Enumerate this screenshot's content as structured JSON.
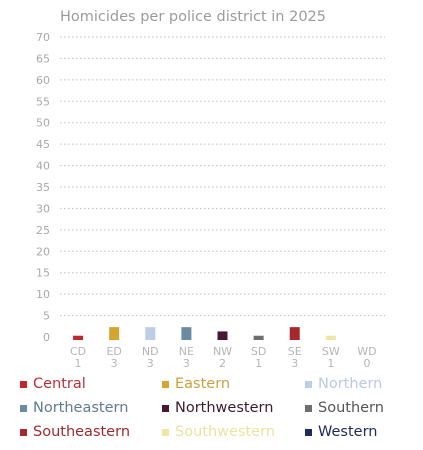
{
  "chart_data": {
    "type": "bar",
    "title": "Homicides per police district in 2025",
    "xlabel": "",
    "ylabel": "",
    "ylim": [
      0,
      70
    ],
    "yticks": [
      "0",
      "5",
      "10",
      "15",
      "20",
      "25",
      "30",
      "35",
      "40",
      "45",
      "50",
      "55",
      "60",
      "65",
      "70"
    ],
    "grid": true,
    "categories": [
      "CD",
      "ED",
      "ND",
      "NE",
      "NW",
      "SD",
      "SE",
      "SW",
      "WD"
    ],
    "values": [
      1,
      3,
      3,
      3,
      2,
      1,
      3,
      1,
      0
    ],
    "value_labels": [
      "1",
      "3",
      "3",
      "3",
      "2",
      "1",
      "3",
      "1",
      "0"
    ],
    "colors": [
      "#c0282d",
      "#d4a62f",
      "#bccde6",
      "#6b8ba0",
      "#4a1733",
      "#6e6e6e",
      "#a8272c",
      "#f0e6a4",
      "#1f2a60"
    ],
    "legend_position": "bottom",
    "legend": [
      {
        "label": "Central",
        "color": "#c0282d",
        "text_color": "#b5313a"
      },
      {
        "label": "Eastern",
        "color": "#d4a62f",
        "text_color": "#caa041"
      },
      {
        "label": "Northern",
        "color": "#bccde6",
        "text_color": "#b8cae3"
      },
      {
        "label": "Northeastern",
        "color": "#6b8ba0",
        "text_color": "#5d7d92"
      },
      {
        "label": "Northwestern",
        "color": "#4a1733",
        "text_color": "#3e1a2e"
      },
      {
        "label": "Southern",
        "color": "#6e6e6e",
        "text_color": "#555555"
      },
      {
        "label": "Southeastern",
        "color": "#a8272c",
        "text_color": "#9e2a2e"
      },
      {
        "label": "Southwestern",
        "color": "#f0e6a4",
        "text_color": "#ece39e"
      },
      {
        "label": "Western",
        "color": "#1f2a60",
        "text_color": "#1f2a5c"
      }
    ]
  }
}
